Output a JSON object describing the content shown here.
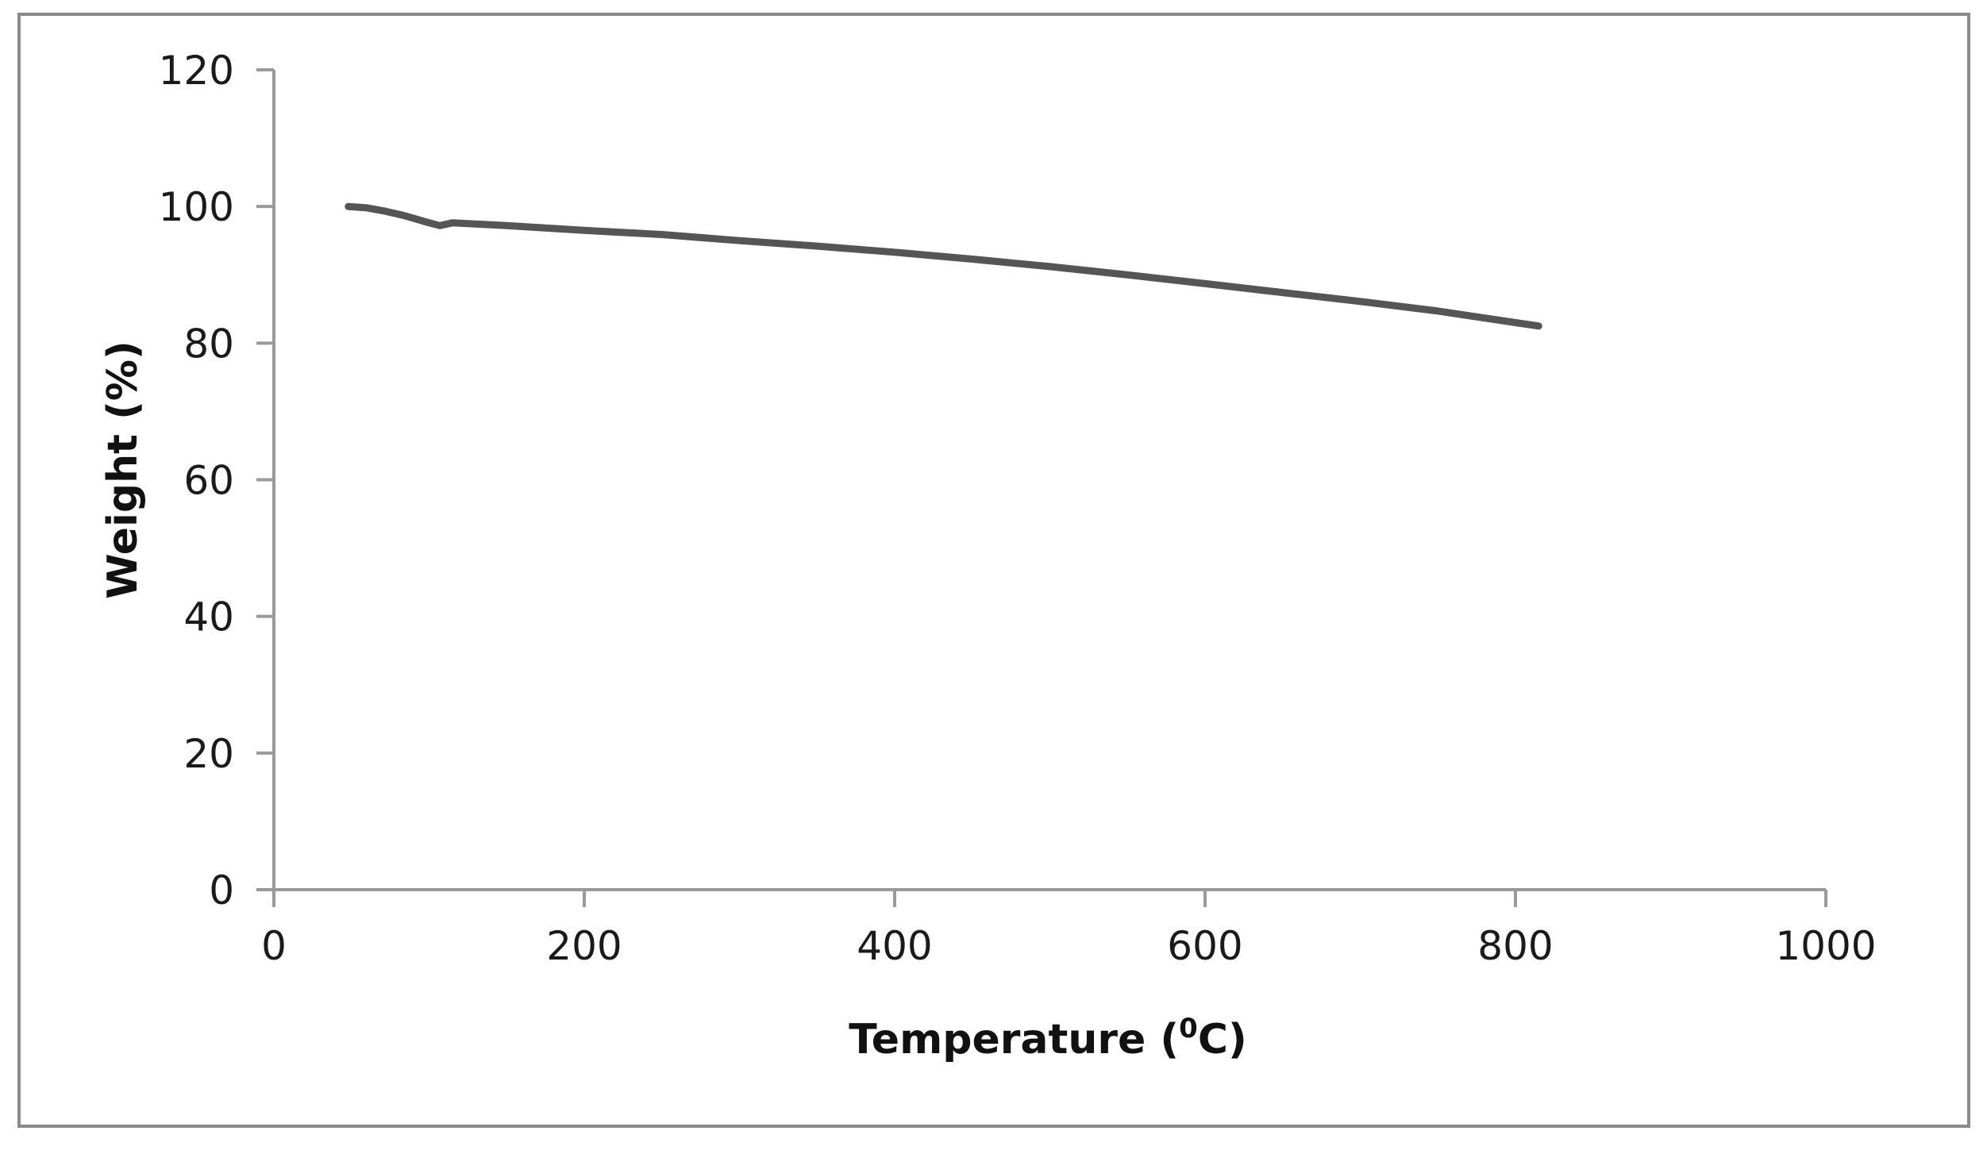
{
  "chart_data": {
    "type": "line",
    "title": "",
    "xlabel": "Temperature",
    "xlabel_suffix_open": " (",
    "xlabel_superscript": "0",
    "xlabel_suffix_close": "C)",
    "ylabel": "Weight (%)",
    "xlim": [
      0,
      1000
    ],
    "ylim": [
      0,
      120
    ],
    "x_ticks": [
      0,
      200,
      400,
      600,
      800,
      1000
    ],
    "y_ticks": [
      0,
      20,
      40,
      60,
      80,
      100,
      120
    ],
    "grid": false,
    "series_color": "#555555",
    "series": [
      {
        "name": "Weight",
        "x": [
          48,
          60,
          72,
          85,
          97,
          107,
          111,
          115,
          125,
          150,
          200,
          250,
          300,
          350,
          400,
          450,
          500,
          550,
          600,
          650,
          700,
          750,
          800,
          815
        ],
        "y": [
          100,
          99.8,
          99.3,
          98.6,
          97.8,
          97.2,
          97.4,
          97.6,
          97.5,
          97.2,
          96.5,
          95.9,
          95.0,
          94.2,
          93.3,
          92.3,
          91.2,
          90.0,
          88.7,
          87.4,
          86.1,
          84.7,
          83.0,
          82.5
        ]
      }
    ]
  }
}
